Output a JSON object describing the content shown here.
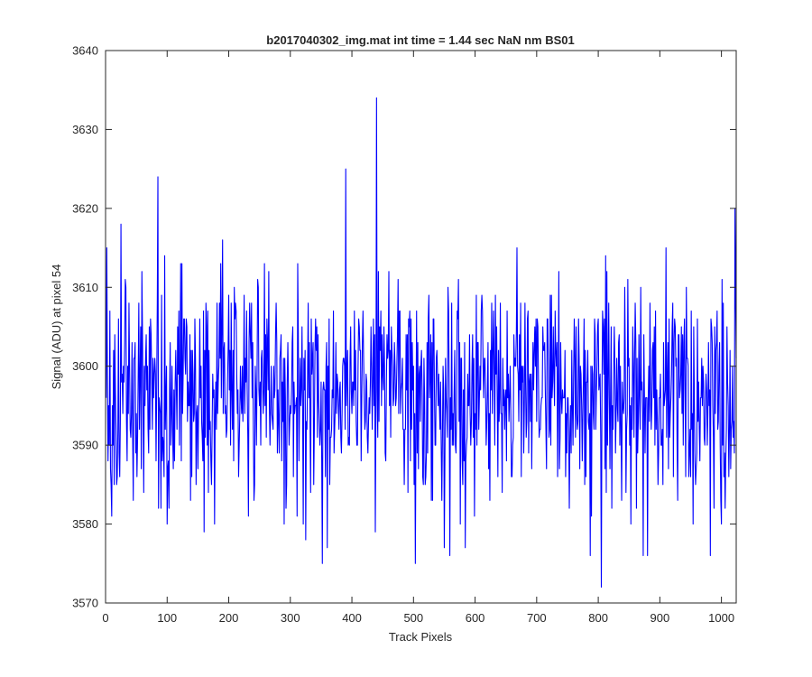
{
  "chart_data": {
    "type": "line",
    "title": "b2017040302_img.mat int time = 1.44 sec  NaN nm BS01",
    "xlabel": "Track Pixels",
    "ylabel": "Signal (ADU) at pixel 54",
    "xlim": [
      0,
      1024
    ],
    "ylim": [
      3570,
      3640
    ],
    "xticks": [
      0,
      100,
      200,
      300,
      400,
      500,
      600,
      700,
      800,
      900,
      1000
    ],
    "yticks": [
      3570,
      3580,
      3590,
      3600,
      3610,
      3620,
      3630,
      3640
    ],
    "grid": false,
    "legend": "none",
    "series_color": "#0000ff",
    "series": [
      {
        "x_start": 1,
        "x_step": 1,
        "noise": {
          "mean": 3597,
          "std": 7,
          "min": 3576,
          "max": 3618,
          "seed": 20170403
        },
        "peaks": [
          {
            "x": 2,
            "y": 3615
          },
          {
            "x": 8,
            "y": 3587
          },
          {
            "x": 18,
            "y": 3585
          },
          {
            "x": 25,
            "y": 3618
          },
          {
            "x": 45,
            "y": 3583
          },
          {
            "x": 85,
            "y": 3624
          },
          {
            "x": 100,
            "y": 3580
          },
          {
            "x": 160,
            "y": 3579
          },
          {
            "x": 290,
            "y": 3580
          },
          {
            "x": 325,
            "y": 3578
          },
          {
            "x": 352,
            "y": 3575
          },
          {
            "x": 360,
            "y": 3577
          },
          {
            "x": 390,
            "y": 3625
          },
          {
            "x": 440,
            "y": 3634
          },
          {
            "x": 438,
            "y": 3579
          },
          {
            "x": 503,
            "y": 3575
          },
          {
            "x": 550,
            "y": 3577
          },
          {
            "x": 668,
            "y": 3615
          },
          {
            "x": 805,
            "y": 3572
          },
          {
            "x": 812,
            "y": 3614
          },
          {
            "x": 880,
            "y": 3576
          },
          {
            "x": 910,
            "y": 3615
          },
          {
            "x": 982,
            "y": 3576
          },
          {
            "x": 1000,
            "y": 3580
          },
          {
            "x": 1022,
            "y": 3620
          }
        ]
      }
    ]
  }
}
